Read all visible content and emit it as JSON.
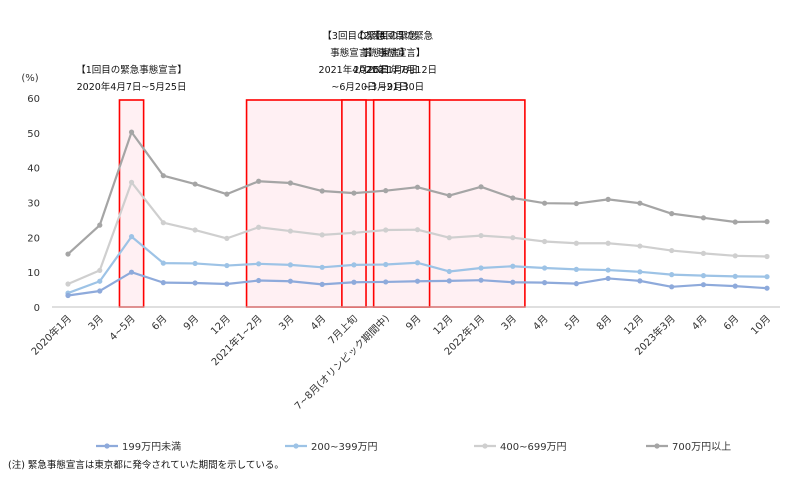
{
  "chart_data": {
    "type": "line",
    "ylabel": "(%)",
    "ylim": [
      0,
      60
    ],
    "yticks": [
      0,
      10,
      20,
      30,
      40,
      50,
      60
    ],
    "categories": [
      "2020年1月",
      "3月",
      "4~5月",
      "6月",
      "9月",
      "12月",
      "2021年1~2月",
      "3月",
      "4月",
      "7月上旬",
      "7~8月(オリンピック期間中)",
      "9月",
      "12月",
      "2022年1月",
      "3月",
      "4月",
      "5月",
      "8月",
      "12月",
      "2023年3月",
      "4月",
      "6月",
      "10月"
    ],
    "series": [
      {
        "name": "199万円未満",
        "color": "#8eaadb",
        "values": [
          3.3,
          4.6,
          10.0,
          7.0,
          6.9,
          6.6,
          7.6,
          7.4,
          6.5,
          7.1,
          7.2,
          7.4,
          7.5,
          7.7,
          7.1,
          7.0,
          6.7,
          8.2,
          7.5,
          5.8,
          6.4,
          6.0,
          5.4
        ]
      },
      {
        "name": "200~399万円",
        "color": "#9dc3e6",
        "values": [
          4.0,
          7.4,
          20.2,
          12.6,
          12.5,
          11.9,
          12.4,
          12.1,
          11.4,
          12.1,
          12.2,
          12.7,
          10.2,
          11.2,
          11.7,
          11.2,
          10.8,
          10.6,
          10.1,
          9.3,
          9.0,
          8.8,
          8.7
        ]
      },
      {
        "name": "400~699万円",
        "color": "#cfcfcf",
        "values": [
          6.6,
          10.5,
          35.8,
          24.2,
          22.1,
          19.7,
          22.9,
          21.8,
          20.7,
          21.3,
          22.1,
          22.2,
          19.9,
          20.5,
          19.9,
          18.8,
          18.3,
          18.3,
          17.5,
          16.2,
          15.4,
          14.7,
          14.5
        ]
      },
      {
        "name": "700万円以上",
        "color": "#a5a5a5",
        "values": [
          15.2,
          23.5,
          50.2,
          37.7,
          35.3,
          32.4,
          36.1,
          35.6,
          33.3,
          32.7,
          33.4,
          34.4,
          32.0,
          34.5,
          31.3,
          29.8,
          29.7,
          30.9,
          29.8,
          26.8,
          25.6,
          24.4,
          24.5
        ]
      }
    ],
    "emergency_periods": [
      {
        "label_lines": [
          "【1回目の緊急事態宣言】",
          "2020年4月7日~5月25日"
        ],
        "from": "4~5月",
        "to": "4~5月"
      },
      {
        "label_lines": [
          "【2回目の緊急",
          "事態宣言】",
          "2021年1月8日",
          "~3月21日"
        ],
        "from": "2021年1~2月",
        "to": "3月"
      },
      {
        "label_lines": [
          "【3回目の緊急",
          "事態宣言】",
          "2021年4月25日",
          "~6月20日"
        ],
        "from": "7月上旬",
        "to": "7月上旬"
      },
      {
        "label_lines": [
          "【4回目の緊急",
          "事態宣言】",
          "2021年7月12日",
          "~9月30日"
        ],
        "from": "7~8月(オリンピック期間中)",
        "to": "9月"
      }
    ],
    "band_color": "#ff0000",
    "band_fill": "#fff0f3",
    "grid": false,
    "legend_position": "bottom",
    "note": "(注) 緊急事態宣言は東京都に発令されていた期間を示している。"
  }
}
